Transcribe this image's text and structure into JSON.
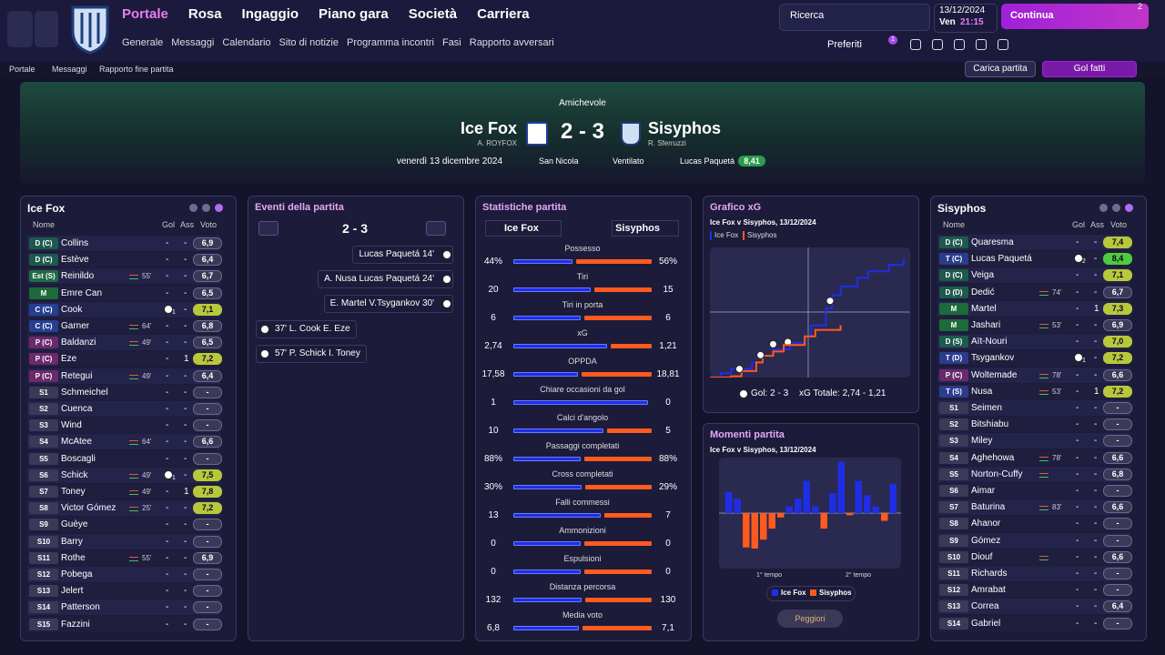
{
  "nav": {
    "menus": [
      "Portale",
      "Rosa",
      "Ingaggio",
      "Piano gara",
      "Società",
      "Carriera"
    ],
    "submenus": [
      "Generale",
      "Messaggi",
      "Calendario",
      "Sito di notizie",
      "Programma incontri",
      "Fasi",
      "Rapporto avversari"
    ],
    "search": "Ricerca",
    "date": "13/12/2024",
    "day": "Ven",
    "time": "21:15",
    "continue": "Continua",
    "inbox_count": "2",
    "favourites": "Preferiti",
    "favourites_badge": "1"
  },
  "breadcrumb": [
    "Portale",
    "Messaggi",
    "Rapporto fine partita"
  ],
  "buttons": {
    "load": "Carica partita",
    "goals": "Gol fatti"
  },
  "match": {
    "competition": "Amichevole",
    "home": "Ice Fox",
    "home_manager": "A. ROYFOX",
    "score": "2 - 3",
    "away": "Sisyphos",
    "away_manager": "R. Sferruzzi",
    "date": "venerdì 13 dicembre 2024",
    "stadium": "San Nicola",
    "weather": "Ventilato",
    "motm": "Lucas Paquetá",
    "motm_rating": "8,41"
  },
  "home_team": {
    "title": "Ice Fox",
    "headers": [
      "Nome",
      "Gol",
      "Ass",
      "Voto"
    ],
    "rows": [
      {
        "pos": "D (C)",
        "name": "Collins",
        "gol": "-",
        "ass": "-",
        "voto": "6,9"
      },
      {
        "pos": "D (C)",
        "name": "Estève",
        "gol": "-",
        "ass": "-",
        "voto": "6,4"
      },
      {
        "pos": "Est (S)",
        "name": "Reinildo",
        "sub": "55'",
        "gol": "-",
        "ass": "-",
        "voto": "6,7"
      },
      {
        "pos": "M",
        "name": "Emre Can",
        "gol": "-",
        "ass": "-",
        "voto": "6,5"
      },
      {
        "pos": "C (C)",
        "name": "Cook",
        "goal_icon": "1",
        "ass": "-",
        "voto": "7,1"
      },
      {
        "pos": "C (C)",
        "name": "Garner",
        "sub": "64'",
        "gol": "-",
        "ass": "-",
        "voto": "6,8"
      },
      {
        "pos": "P (C)",
        "name": "Baldanzi",
        "sub": "49'",
        "gol": "-",
        "ass": "-",
        "voto": "6,5"
      },
      {
        "pos": "P (C)",
        "name": "Eze",
        "gol": "-",
        "ass": "1",
        "voto": "7,2"
      },
      {
        "pos": "P (C)",
        "name": "Retegui",
        "sub": "49'",
        "gol": "-",
        "ass": "-",
        "voto": "6,4"
      },
      {
        "pos": "S1",
        "name": "Schmeichel",
        "gol": "-",
        "ass": "-",
        "voto": "-"
      },
      {
        "pos": "S2",
        "name": "Cuenca",
        "gol": "-",
        "ass": "-",
        "voto": "-"
      },
      {
        "pos": "S3",
        "name": "Wind",
        "gol": "-",
        "ass": "-",
        "voto": "-"
      },
      {
        "pos": "S4",
        "name": "McAtee",
        "sub": "64'",
        "gol": "-",
        "ass": "-",
        "voto": "6,6"
      },
      {
        "pos": "S5",
        "name": "Boscagli",
        "gol": "-",
        "ass": "-",
        "voto": "-"
      },
      {
        "pos": "S6",
        "name": "Schick",
        "sub": "49'",
        "goal_icon": "1",
        "ass": "-",
        "voto": "7,5"
      },
      {
        "pos": "S7",
        "name": "Toney",
        "sub": "49'",
        "gol": "-",
        "ass": "1",
        "voto": "7,8"
      },
      {
        "pos": "S8",
        "name": "Victor Gómez",
        "sub": "25'",
        "gol": "-",
        "ass": "-",
        "voto": "7,2"
      },
      {
        "pos": "S9",
        "name": "Guèye",
        "gol": "-",
        "ass": "-",
        "voto": "-"
      },
      {
        "pos": "S10",
        "name": "Barry",
        "gol": "-",
        "ass": "-",
        "voto": "-"
      },
      {
        "pos": "S11",
        "name": "Rothe",
        "sub": "55'",
        "gol": "-",
        "ass": "-",
        "voto": "6,9"
      },
      {
        "pos": "S12",
        "name": "Pobega",
        "gol": "-",
        "ass": "-",
        "voto": "-"
      },
      {
        "pos": "S13",
        "name": "Jelert",
        "gol": "-",
        "ass": "-",
        "voto": "-"
      },
      {
        "pos": "S14",
        "name": "Patterson",
        "gol": "-",
        "ass": "-",
        "voto": "-"
      },
      {
        "pos": "S15",
        "name": "Fazzini",
        "gol": "-",
        "ass": "-",
        "voto": "-"
      }
    ]
  },
  "away_team": {
    "title": "Sisyphos",
    "headers": [
      "Nome",
      "Gol",
      "Ass",
      "Voto"
    ],
    "rows": [
      {
        "pos": "D (C)",
        "name": "Quaresma",
        "gol": "-",
        "ass": "-",
        "voto": "7,4"
      },
      {
        "pos": "T (C)",
        "name": "Lucas Paquetá",
        "goal_icon": "2",
        "ass": "-",
        "voto": "8,4"
      },
      {
        "pos": "D (C)",
        "name": "Veiga",
        "gol": "-",
        "ass": "-",
        "voto": "7,1"
      },
      {
        "pos": "D (D)",
        "name": "Dedić",
        "sub": "74'",
        "gol": "-",
        "ass": "-",
        "voto": "6,7"
      },
      {
        "pos": "M",
        "name": "Martel",
        "gol": "-",
        "ass": "1",
        "voto": "7,3"
      },
      {
        "pos": "M",
        "name": "Jashari",
        "sub": "53'",
        "gol": "-",
        "ass": "-",
        "voto": "6,9"
      },
      {
        "pos": "D (S)",
        "name": "Aït-Nouri",
        "gol": "-",
        "ass": "-",
        "voto": "7,0"
      },
      {
        "pos": "T (D)",
        "name": "Tsygankov",
        "goal_icon": "1",
        "ass": "-",
        "voto": "7,2"
      },
      {
        "pos": "P (C)",
        "name": "Woltemade",
        "sub": "78'",
        "gol": "-",
        "ass": "-",
        "voto": "6,6"
      },
      {
        "pos": "T (S)",
        "name": "Nusa",
        "sub": "53'",
        "gol": "-",
        "ass": "1",
        "voto": "7,2"
      },
      {
        "pos": "S1",
        "name": "Seimen",
        "gol": "-",
        "ass": "-",
        "voto": "-"
      },
      {
        "pos": "S2",
        "name": "Bitshiabu",
        "gol": "-",
        "ass": "-",
        "voto": "-"
      },
      {
        "pos": "S3",
        "name": "Miley",
        "gol": "-",
        "ass": "-",
        "voto": "-"
      },
      {
        "pos": "S4",
        "name": "Aghehowa",
        "sub": "78'",
        "gol": "-",
        "ass": "-",
        "voto": "6,6"
      },
      {
        "pos": "S5",
        "name": "Norton-Cuffy",
        "subbed": true,
        "gol": "-",
        "ass": "-",
        "voto": "6,8"
      },
      {
        "pos": "S6",
        "name": "Aimar",
        "gol": "-",
        "ass": "-",
        "voto": "-"
      },
      {
        "pos": "S7",
        "name": "Baturina",
        "sub": "83'",
        "gol": "-",
        "ass": "-",
        "voto": "6,6"
      },
      {
        "pos": "S8",
        "name": "Ahanor",
        "gol": "-",
        "ass": "-",
        "voto": "-"
      },
      {
        "pos": "S9",
        "name": "Gómez",
        "gol": "-",
        "ass": "-",
        "voto": "-"
      },
      {
        "pos": "S10",
        "name": "Diouf",
        "subbed": true,
        "gol": "-",
        "ass": "-",
        "voto": "6,6"
      },
      {
        "pos": "S11",
        "name": "Richards",
        "gol": "-",
        "ass": "-",
        "voto": "-"
      },
      {
        "pos": "S12",
        "name": "Amrabat",
        "gol": "-",
        "ass": "-",
        "voto": "-"
      },
      {
        "pos": "S13",
        "name": "Correa",
        "gol": "-",
        "ass": "-",
        "voto": "6,4"
      },
      {
        "pos": "S14",
        "name": "Gabriel",
        "gol": "-",
        "ass": "-",
        "voto": "-"
      }
    ]
  },
  "events": {
    "title": "Eventi della partita",
    "score": "2 - 3",
    "away": [
      "Lucas Paquetá 14'",
      "A. Nusa Lucas Paquetá 24'",
      "E. Martel V.Tsygankov 30'"
    ],
    "home": [
      "37' L. Cook E. Eze",
      "57' P. Schick I. Toney"
    ]
  },
  "stats": {
    "title": "Statistiche partita",
    "home": "Ice Fox",
    "away": "Sisyphos",
    "home_color": "#1f2ee6",
    "away_color": "#ff5a1f",
    "rows": [
      {
        "label": "Possesso",
        "home": 44,
        "away": 56,
        "home_label": "44%",
        "away_label": "56%"
      },
      {
        "label": "Tiri",
        "home": 20,
        "away": 15
      },
      {
        "label": "Tiri in porta",
        "home": 6,
        "away": 6
      },
      {
        "label": "xG",
        "home": 2.74,
        "away": 1.21,
        "home_label": "2,74",
        "away_label": "1,21"
      },
      {
        "label": "OPPDA",
        "home": 17.58,
        "away": 18.81,
        "home_label": "17,58",
        "away_label": "18,81"
      },
      {
        "label": "Chiare occasioni da gol",
        "home": 1,
        "away": 0
      },
      {
        "label": "Calci d'angolo",
        "home": 10,
        "away": 5
      },
      {
        "label": "Passaggi completati",
        "home": 88,
        "away": 88,
        "home_label": "88%",
        "away_label": "88%"
      },
      {
        "label": "Cross completati",
        "home": 30,
        "away": 29,
        "home_label": "30%",
        "away_label": "29%"
      },
      {
        "label": "Falli commessi",
        "home": 13,
        "away": 7
      },
      {
        "label": "Ammonizioni",
        "home": 0,
        "away": 0
      },
      {
        "label": "Espulsioni",
        "home": 0,
        "away": 0
      },
      {
        "label": "Distanza percorsa",
        "home": 132,
        "away": 130
      },
      {
        "label": "Media voto",
        "home": 6.8,
        "away": 7.1,
        "home_label": "6,8",
        "away_label": "7,1"
      }
    ]
  },
  "chart_data": [
    {
      "type": "line",
      "title": "Grafico xG",
      "subtitle": "Ice Fox v Sisyphos, 13/12/2024",
      "xlim": [
        0,
        95
      ],
      "ylim": [
        0,
        3
      ],
      "series": [
        {
          "name": "Ice Fox",
          "color": "#1f2ee6",
          "x": [
            0,
            5,
            10,
            20,
            25,
            30,
            38,
            45,
            48,
            55,
            58,
            62,
            70,
            75,
            85,
            92
          ],
          "values": [
            0,
            0.1,
            0.2,
            0.35,
            0.5,
            0.65,
            0.8,
            0.95,
            1.2,
            1.6,
            1.9,
            2.1,
            2.3,
            2.45,
            2.6,
            2.74
          ],
          "goal_minutes": [
            37,
            57
          ]
        },
        {
          "name": "Sisyphos",
          "color": "#ff5a1f",
          "x": [
            0,
            10,
            15,
            22,
            25,
            30,
            35,
            45,
            50,
            62
          ],
          "values": [
            0,
            0.03,
            0.15,
            0.35,
            0.5,
            0.6,
            0.75,
            0.95,
            1.1,
            1.21
          ],
          "goal_minutes": [
            14,
            24,
            30
          ]
        }
      ],
      "goals_label": "Gol: 2 - 3",
      "xg_total_label": "xG Totale: 2,74 - 1,21"
    },
    {
      "type": "bar",
      "title": "Momenti partita",
      "subtitle": "Ice Fox v Sisyphos, 13/12/2024",
      "ylim": [
        -50,
        50
      ],
      "categories": [
        null,
        null,
        null,
        null,
        null,
        null,
        null,
        null,
        null,
        null,
        null,
        null,
        null,
        null,
        null,
        null,
        null,
        null,
        null,
        null
      ],
      "series": [
        {
          "name": "Ice Fox",
          "color": "#1f2ee6",
          "values": [
            19,
            13,
            null,
            null,
            null,
            null,
            null,
            6,
            13,
            29,
            6,
            null,
            18,
            46,
            null,
            29,
            16,
            6,
            null,
            26
          ]
        },
        {
          "name": "Sisyphos",
          "color": "#ff5a1f",
          "values": [
            null,
            null,
            -31,
            -32,
            -24,
            -14,
            -4,
            null,
            null,
            null,
            null,
            -14,
            null,
            null,
            -2,
            null,
            null,
            null,
            -7,
            null
          ]
        }
      ],
      "period_labels": [
        "1° tempo",
        "2° tempo"
      ],
      "button": "Peggiori"
    }
  ]
}
